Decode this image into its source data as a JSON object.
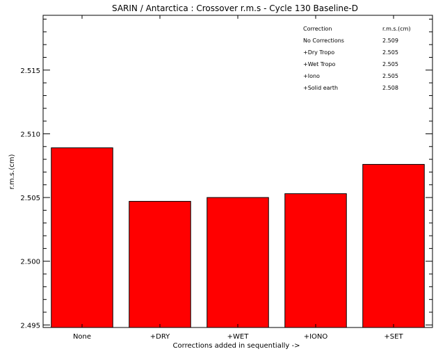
{
  "chart_data": {
    "type": "bar",
    "title": "SARIN / Antarctica : Crossover r.m.s - Cycle 130 Baseline-D",
    "xlabel": "Corrections added in sequentially ->",
    "ylabel": "r.m.s.(cm)",
    "categories": [
      "None",
      "+DRY",
      "+WET",
      "+IONO",
      "+SET"
    ],
    "values": [
      2.5089,
      2.5047,
      2.505,
      2.5053,
      2.5076
    ],
    "ylim": [
      2.4948,
      2.5193
    ],
    "yticks": [
      2.495,
      2.5,
      2.505,
      2.51,
      2.515
    ],
    "ytick_labels": [
      "2.495",
      "2.500",
      "2.505",
      "2.510",
      "2.515"
    ],
    "bar_color": "#ff0000",
    "grid": false,
    "annotation_table": {
      "placement": "top-right",
      "header": [
        "Correction",
        "r.m.s.(cm)"
      ],
      "rows": [
        [
          "No Corrections",
          "2.509"
        ],
        [
          "+Dry Tropo",
          "2.505"
        ],
        [
          "+Wet Tropo",
          "2.505"
        ],
        [
          "+Iono",
          "2.505"
        ],
        [
          "+Solid earth",
          "2.508"
        ]
      ]
    }
  }
}
